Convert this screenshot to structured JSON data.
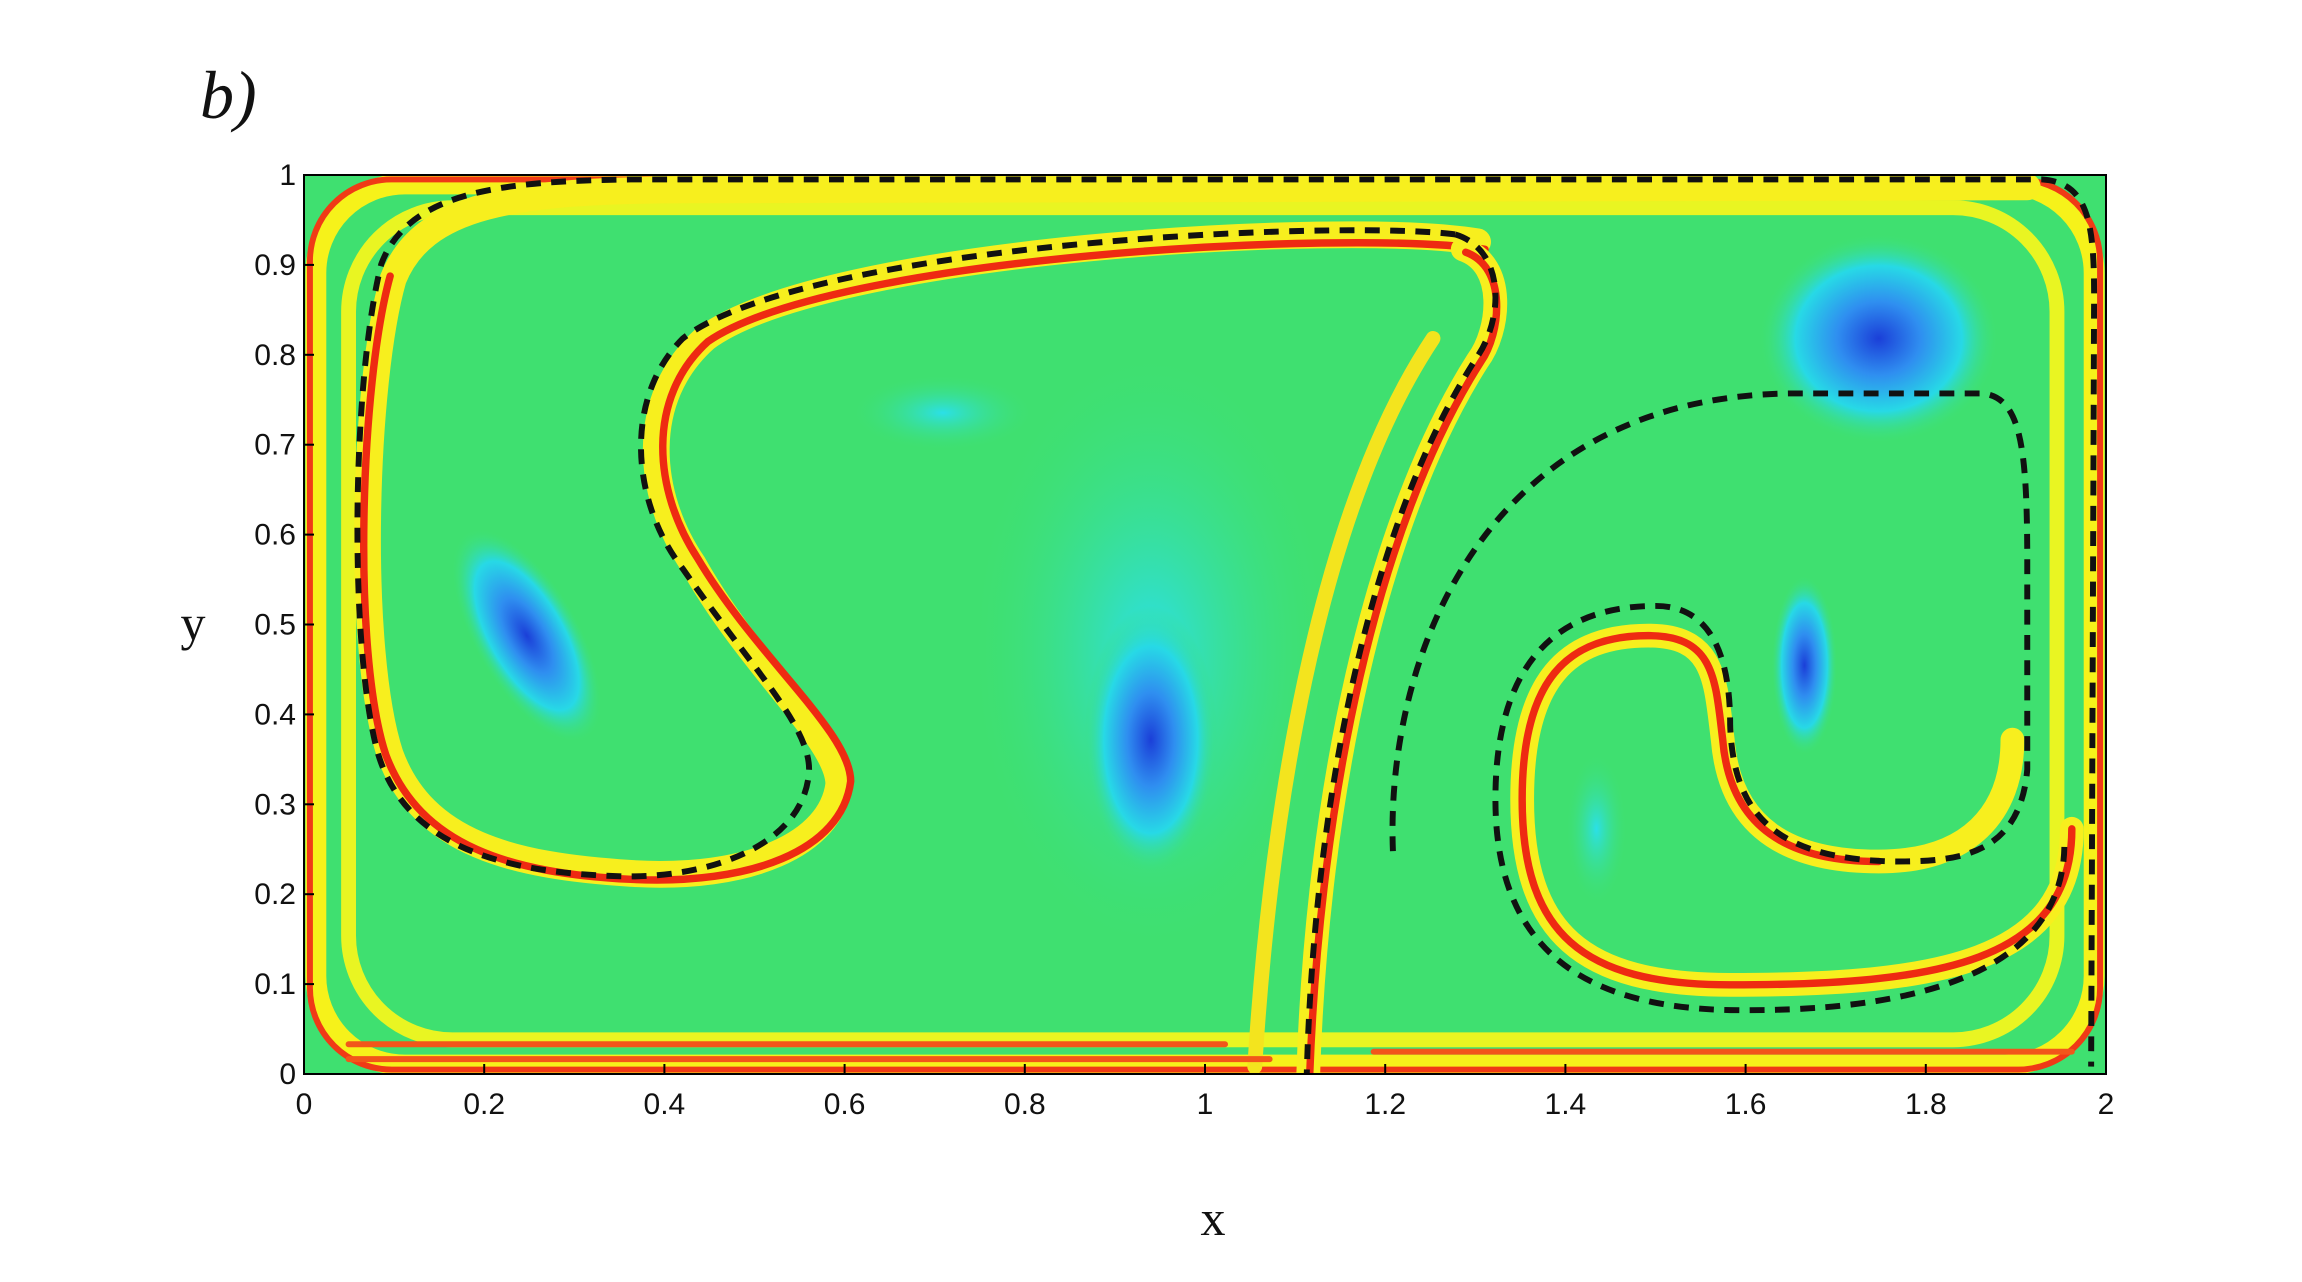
{
  "chart_data": {
    "type": "field",
    "panel_label": "b)",
    "x_label": "x",
    "y_label": "y",
    "xlim": [
      0,
      2
    ],
    "ylim": [
      0,
      1
    ],
    "xticks": [
      0,
      0.2,
      0.4,
      0.6,
      0.8,
      1,
      1.2,
      1.4,
      1.6,
      1.8,
      2
    ],
    "yticks": [
      0,
      0.1,
      0.2,
      0.3,
      0.4,
      0.5,
      0.6,
      0.7,
      0.8,
      0.9,
      1
    ]
  }
}
